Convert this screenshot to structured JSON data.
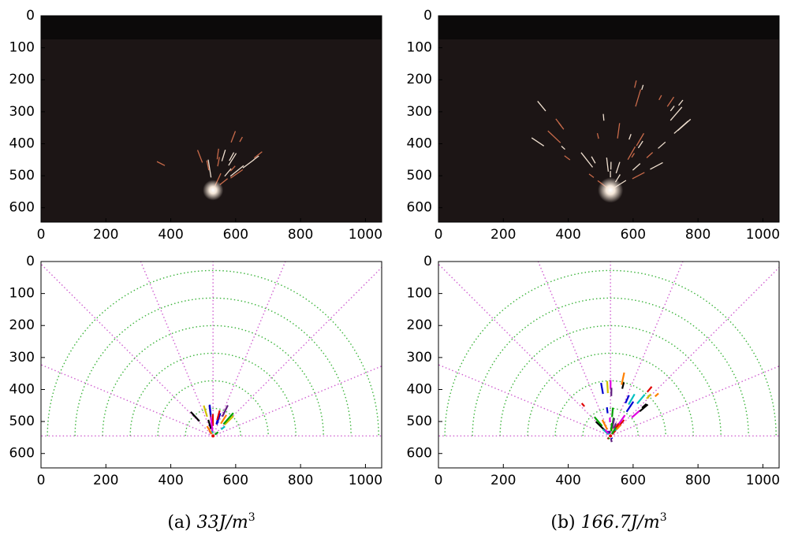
{
  "panels": [
    {
      "kind": "photo",
      "xlim": [
        0,
        1050
      ],
      "ylim": [
        0,
        645
      ],
      "xticks": [
        0,
        200,
        400,
        600,
        800,
        1000
      ],
      "yticks": [
        0,
        100,
        200,
        300,
        400,
        500,
        600
      ]
    },
    {
      "kind": "photo",
      "xlim": [
        0,
        1050
      ],
      "ylim": [
        0,
        645
      ],
      "xticks": [
        0,
        200,
        400,
        600,
        800,
        1000
      ],
      "yticks": [
        0,
        100,
        200,
        300,
        400,
        500,
        600
      ]
    },
    {
      "kind": "polar",
      "xlim": [
        0,
        1050
      ],
      "ylim": [
        0,
        645
      ],
      "xticks": [
        0,
        200,
        400,
        600,
        800,
        1000
      ],
      "yticks": [
        0,
        100,
        200,
        300,
        400,
        500,
        600
      ]
    },
    {
      "kind": "polar",
      "xlim": [
        0,
        1050
      ],
      "ylim": [
        0,
        645
      ],
      "xticks": [
        0,
        200,
        400,
        600,
        800,
        1000
      ],
      "yticks": [
        0,
        100,
        200,
        300,
        400,
        500,
        600
      ]
    }
  ],
  "captions": [
    {
      "label": "(a)",
      "text": "33J/m",
      "exponent": "3"
    },
    {
      "label": "(b)",
      "text": "166.7J/m",
      "exponent": "3"
    }
  ]
}
